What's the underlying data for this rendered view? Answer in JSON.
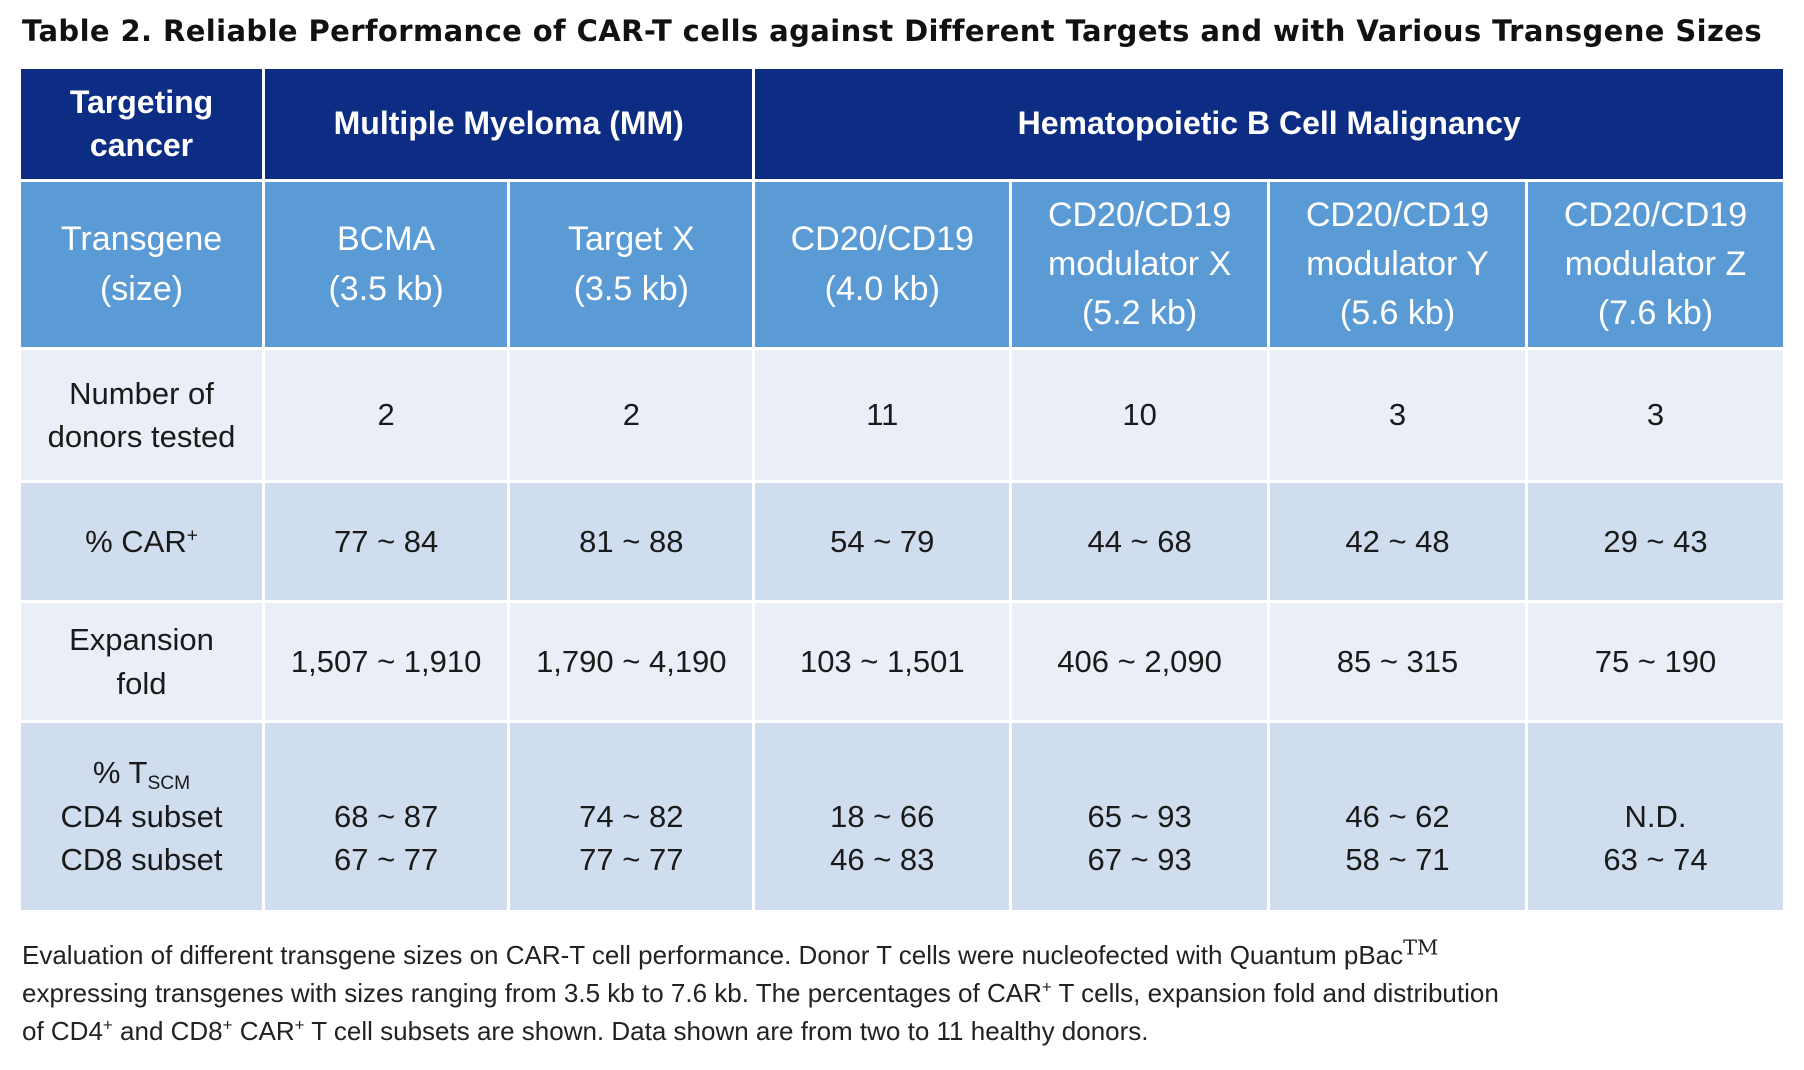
{
  "title": "Table 2. Reliable Performance of CAR-T cells against Different Targets and with Various Transgene Sizes",
  "header": {
    "targeting_cancer": [
      "Targeting",
      "cancer"
    ],
    "mm_group": "Multiple Myeloma (MM)",
    "b_cell_group": "Hematopoietic B Cell Malignancy"
  },
  "transgene_label": [
    "Transgene",
    "(size)"
  ],
  "transgenes": [
    {
      "name": [
        "BCMA"
      ],
      "size": "(3.5 kb)"
    },
    {
      "name": [
        "Target X"
      ],
      "size": "(3.5 kb)"
    },
    {
      "name": [
        "CD20/CD19"
      ],
      "size": "(4.0 kb)"
    },
    {
      "name": [
        "CD20/CD19",
        "modulator X"
      ],
      "size": "(5.2 kb)"
    },
    {
      "name": [
        "CD20/CD19",
        "modulator Y"
      ],
      "size": "(5.6 kb)"
    },
    {
      "name": [
        "CD20/CD19",
        "modulator Z"
      ],
      "size": "(7.6 kb)"
    }
  ],
  "rows": {
    "donors": {
      "label": [
        "Number of",
        "donors tested"
      ],
      "values": [
        "2",
        "2",
        "11",
        "10",
        "3",
        "3"
      ]
    },
    "car_pct": {
      "label_main": "% CAR",
      "label_sup": "+",
      "values": [
        "77 ~ 84",
        "81 ~ 88",
        "54 ~ 79",
        "44 ~ 68",
        "42 ~ 48",
        "29 ~ 43"
      ]
    },
    "expansion": {
      "label": [
        "Expansion",
        "fold"
      ],
      "values": [
        "1,507 ~ 1,910",
        "1,790 ~ 4,190",
        "103 ~ 1,501",
        "406 ~ 2,090",
        "85 ~ 315",
        "75 ~ 190"
      ]
    },
    "tscm": {
      "label_main": "% T",
      "label_sub": "SCM",
      "label_cd4": "CD4 subset",
      "label_cd8": "CD8 subset",
      "cd4": [
        "68 ~ 87",
        "74 ~ 82",
        "18 ~ 66",
        "65 ~ 93",
        "46 ~ 62",
        "N.D."
      ],
      "cd8": [
        "67 ~ 77",
        "77 ~ 77",
        "46 ~ 83",
        "67 ~ 93",
        "58 ~ 71",
        "63 ~ 74"
      ]
    }
  },
  "footnote": {
    "p1": "Evaluation of different transgene sizes on CAR-T cell performance. Donor T cells were nucleofected with Quantum pBac",
    "tm": "TM",
    "p2": "expressing transgenes with sizes ranging from 3.5 kb to 7.6 kb. The percentages of CAR",
    "plus": "+",
    "p3": " T cells, expansion fold and distribution of CD4",
    "p4": " and CD8",
    "p5": " CAR",
    "p6": " T cell subsets are shown. Data shown are from two to 11 healthy donors."
  }
}
